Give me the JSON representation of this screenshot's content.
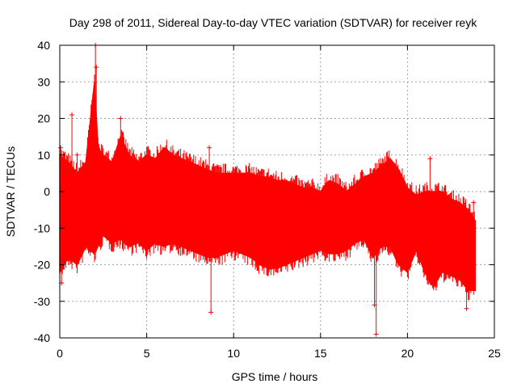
{
  "chart_data": {
    "type": "scatter",
    "title": "Day 298 of 2011, Sidereal Day-to-day VTEC variation (SDTVAR) for receiver reyk",
    "xlabel": "GPS time / hours",
    "ylabel": "SDTVAR / TECUs",
    "xlim": [
      0,
      25
    ],
    "ylim": [
      -40,
      40
    ],
    "xticks": [
      0,
      5,
      10,
      15,
      20,
      25
    ],
    "yticks": [
      -40,
      -30,
      -20,
      -10,
      0,
      10,
      20,
      30,
      40
    ],
    "xtick_labels": [
      "0",
      "5",
      "10",
      "15",
      "20",
      "25"
    ],
    "ytick_labels": [
      "-40",
      "-30",
      "-20",
      "-10",
      "0",
      "10",
      "20",
      "30",
      "40"
    ],
    "grid": true,
    "marker": "+",
    "series_color": "#ff0000",
    "envelope": {
      "x": [
        0.0,
        0.5,
        1.0,
        1.5,
        2.0,
        2.2,
        2.5,
        3.0,
        3.5,
        4.0,
        4.5,
        5.0,
        5.5,
        6.0,
        6.5,
        7.0,
        7.5,
        8.0,
        8.5,
        9.0,
        9.5,
        10.0,
        10.5,
        11.0,
        11.5,
        12.0,
        12.5,
        13.0,
        13.5,
        14.0,
        14.5,
        15.0,
        15.5,
        16.0,
        16.5,
        17.0,
        17.5,
        18.0,
        18.5,
        19.0,
        19.5,
        20.0,
        20.5,
        21.0,
        21.5,
        22.0,
        22.5,
        23.0,
        23.5,
        23.9
      ],
      "upper": [
        10,
        8,
        5,
        8,
        30,
        12,
        10,
        8,
        15,
        10,
        8,
        10,
        9,
        12,
        10,
        9,
        8,
        7,
        6,
        5,
        5,
        5,
        5,
        5,
        4,
        4,
        3,
        3,
        2,
        1,
        1,
        0,
        3,
        2,
        0,
        2,
        4,
        5,
        7,
        9,
        6,
        1,
        -1,
        0,
        0,
        0,
        -2,
        -3,
        -5,
        -8
      ],
      "lower": [
        -22,
        -18,
        -20,
        -15,
        -17,
        -15,
        -12,
        -14,
        -13,
        -15,
        -14,
        -16,
        -14,
        -15,
        -14,
        -15,
        -16,
        -17,
        -18,
        -18,
        -17,
        -16,
        -17,
        -18,
        -20,
        -21,
        -21,
        -20,
        -19,
        -18,
        -17,
        -16,
        -17,
        -17,
        -16,
        -14,
        -13,
        -18,
        -15,
        -15,
        -20,
        -22,
        -16,
        -22,
        -26,
        -22,
        -23,
        -24,
        -27,
        -27
      ]
    },
    "outliers": [
      {
        "x": 0.05,
        "y": 12
      },
      {
        "x": 0.1,
        "y": -25
      },
      {
        "x": 0.7,
        "y": 21
      },
      {
        "x": 1.0,
        "y": 10
      },
      {
        "x": 2.05,
        "y": 40
      },
      {
        "x": 2.1,
        "y": 34
      },
      {
        "x": 3.5,
        "y": 20
      },
      {
        "x": 8.6,
        "y": 12
      },
      {
        "x": 8.7,
        "y": -33
      },
      {
        "x": 18.1,
        "y": -31
      },
      {
        "x": 18.2,
        "y": -39
      },
      {
        "x": 18.5,
        "y": 6
      },
      {
        "x": 21.3,
        "y": 9
      },
      {
        "x": 23.8,
        "y": -3
      },
      {
        "x": 23.4,
        "y": -32
      }
    ]
  }
}
